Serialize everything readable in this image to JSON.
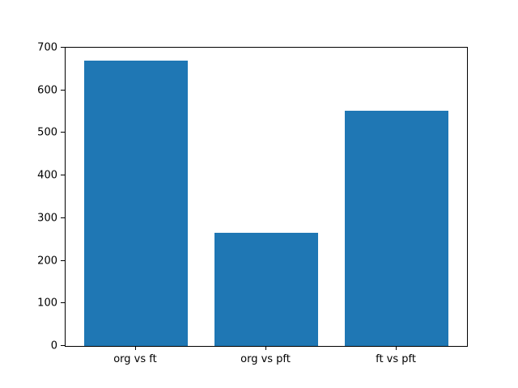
{
  "chart_data": {
    "type": "bar",
    "categories": [
      "org vs ft",
      "org vs pft",
      "ft vs pft"
    ],
    "values": [
      670,
      265,
      552
    ],
    "title": "",
    "xlabel": "",
    "ylabel": "",
    "ylim": [
      0,
      700
    ],
    "yticks": [
      0,
      100,
      200,
      300,
      400,
      500,
      600,
      700
    ],
    "bar_color": "#1f77b4",
    "axis_color": "#000000",
    "background_color": "#ffffff",
    "grid": false,
    "legend": null,
    "bar_width_fraction": 0.8
  }
}
